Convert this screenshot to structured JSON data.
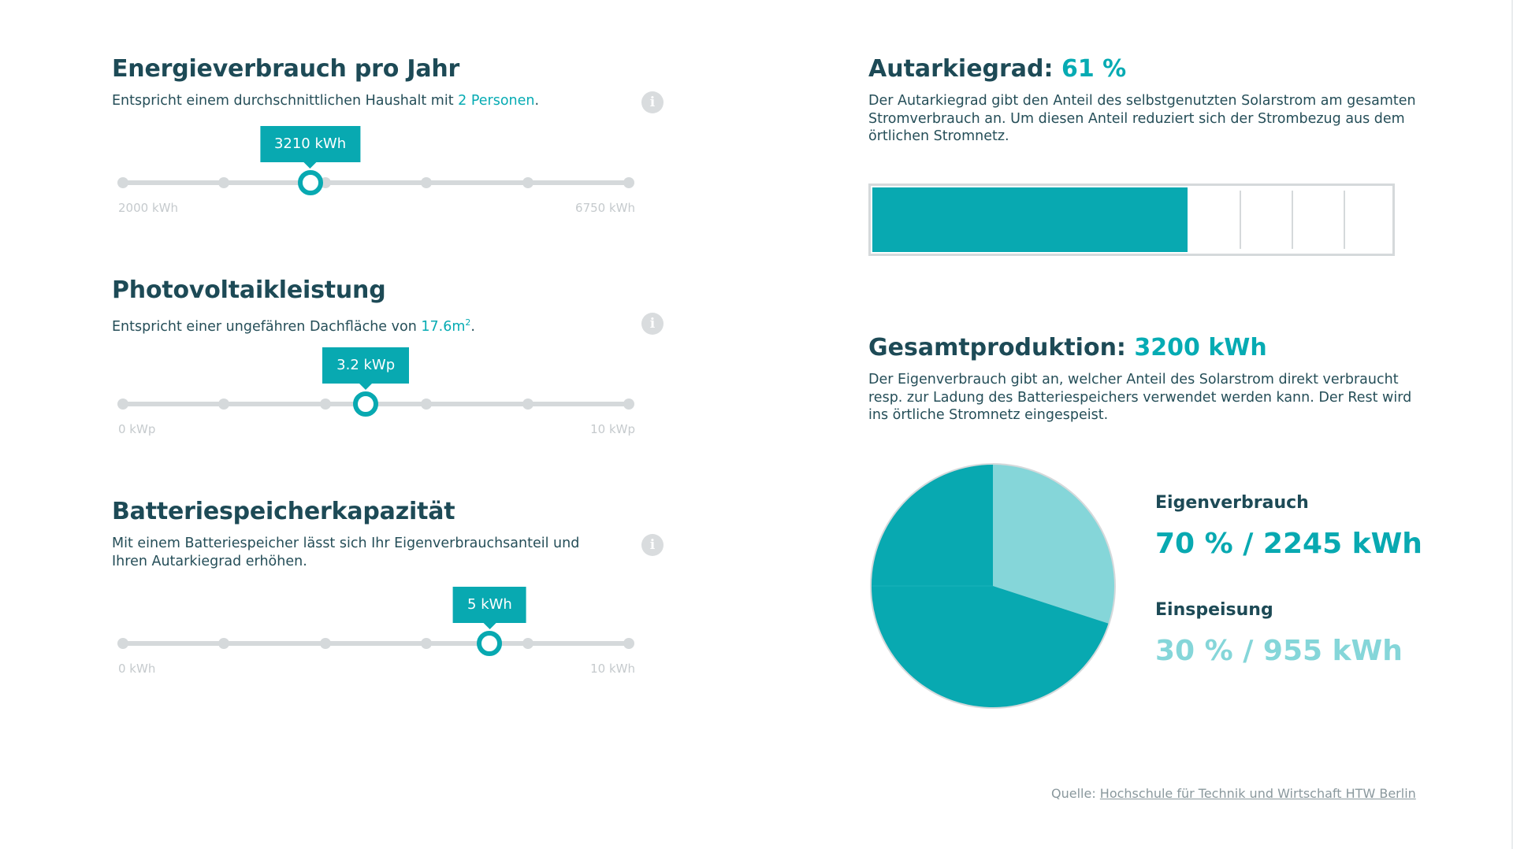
{
  "sliders": [
    {
      "title": "Energieverbrauch pro Jahr",
      "desc_before": "Entspricht einem durchschnittlichen Haushalt mit ",
      "desc_accent": "2 Personen",
      "desc_after": ".",
      "value_label": "3210 kWh",
      "value_fraction": 0.37,
      "min_label": "2000 kWh",
      "max_label": "6750 kWh",
      "steps": 5
    },
    {
      "title": "Photovoltaikleistung",
      "desc_before": "Entspricht einer ungefähren Dachfläche von ",
      "desc_accent": "17.6m",
      "desc_accent_sup": "2",
      "desc_after": ".",
      "value_label": "3.2 kWp",
      "value_fraction": 0.48,
      "min_label": "0 kWp",
      "max_label": "10 kWp",
      "steps": 5
    },
    {
      "title": "Batteriespeicherkapazität",
      "desc_before": "Mit einem Batteriespeicher lässt sich Ihr Eigenverbrauchsanteil und Ihren Autarkiegrad erhöhen.",
      "desc_accent": "",
      "desc_after": "",
      "value_label": "5 kWh",
      "value_fraction": 0.725,
      "min_label": "0 kWh",
      "max_label": "10 kWh",
      "steps": 5
    }
  ],
  "autarkie": {
    "title": "Autarkiegrad: ",
    "value": "61 %",
    "percent": 61,
    "desc": "Der Autarkiegrad gibt den Anteil des selbstgenutzten Solarstrom am gesamten Stromverbrauch an. Um diesen Anteil reduziert sich der Strombezug aus dem örtlichen Stromnetz."
  },
  "production": {
    "title": "Gesamtproduktion: ",
    "value": "3200 kWh",
    "desc": "Der Eigenverbrauch gibt an, welcher Anteil des Solarstrom direkt verbraucht resp. zur Ladung des Batteriespeichers verwendet werden kann. Der Rest wird ins örtliche Stromnetz eingespeist."
  },
  "chart_data": {
    "type": "pie",
    "slices": [
      {
        "label": "Eigenverbrauch",
        "percent": 70,
        "kwh": 2245,
        "value_text": "70 % / 2245 kWh",
        "color": "#08a9b1"
      },
      {
        "label": "Einspeisung",
        "percent": 30,
        "kwh": 955,
        "value_text": "30 % / 955 kWh",
        "color": "#85d6d9"
      }
    ]
  },
  "source": {
    "prefix": "Quelle: ",
    "link": "Hochschule für Technik und Wirtschaft HTW Berlin"
  },
  "colors": {
    "accent": "#08a9b1",
    "accent_light": "#85d6d9",
    "track": "#d5d9db",
    "heading": "#1d4a56"
  },
  "icons": {
    "info": "info-icon"
  }
}
